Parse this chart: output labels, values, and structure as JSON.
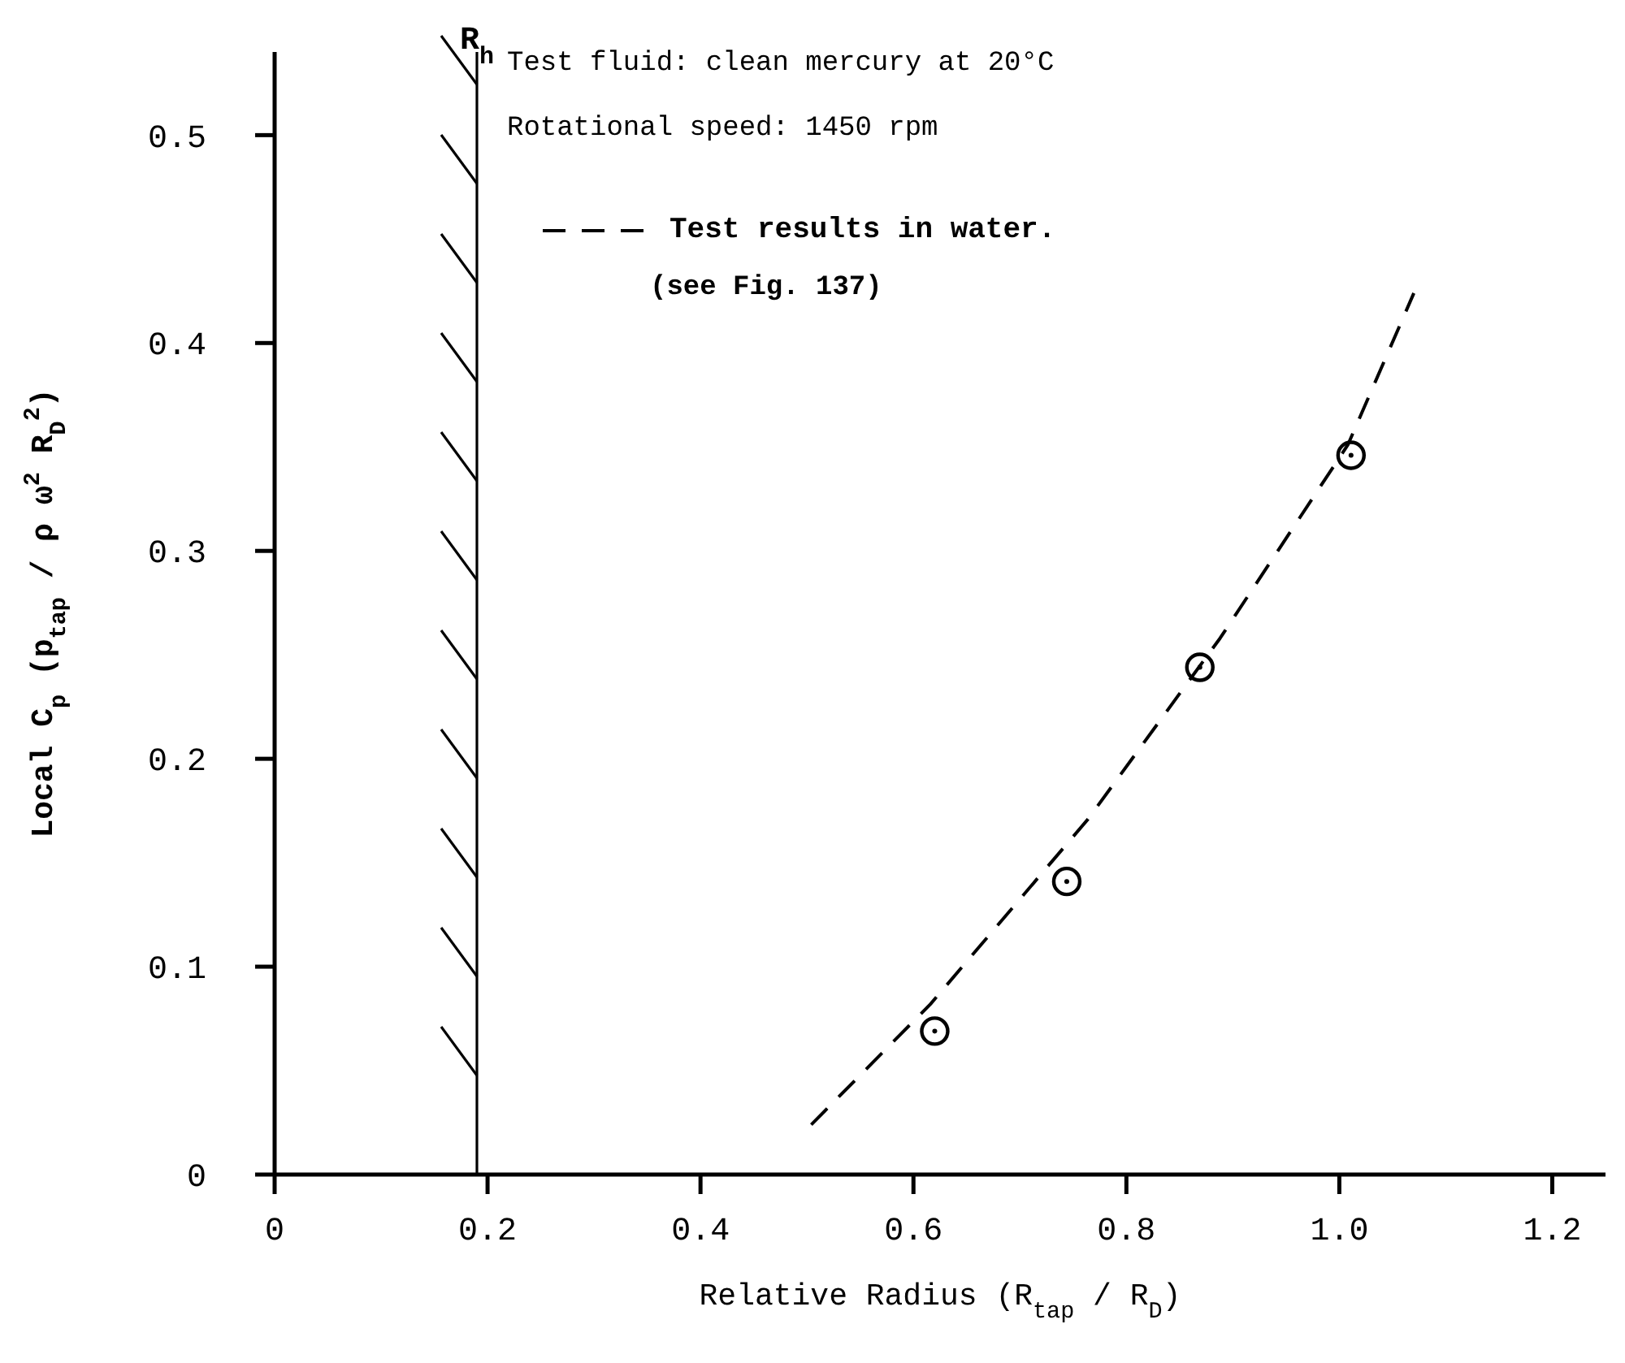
{
  "chart_data": {
    "type": "scatter",
    "xlabel": "Relative Radius (R$_{tap}$ / R$_{D}$)",
    "ylabel": "Local C$_{p}$ (p$_{tap}$ / ρ ω$^{2}$ R$_{D}$$^{2}$)",
    "annotations": [
      "Test fluid: clean mercury at 20°C",
      "Rotational speed: 1450 rpm",
      "(see Fig. 137)"
    ],
    "series": [
      {
        "color": "#000000",
        "marker": "circle",
        "x": [
          0.62,
          0.744,
          0.869,
          1.011
        ],
        "values": [
          0.069,
          0.141,
          0.244,
          0.346
        ]
      },
      {
        "type": "line",
        "name": "Test results in water.",
        "color": "#000000",
        "line_style": "dashed",
        "marker": "none",
        "x": [
          0.504,
          0.616,
          0.764,
          0.888,
          1.008,
          1.07
        ],
        "values": [
          0.024,
          0.082,
          0.171,
          0.258,
          0.351,
          0.424
        ]
      }
    ],
    "xlim": [
      0,
      1.25
    ],
    "xticks": [
      0,
      0.2,
      0.4,
      0.6,
      0.8,
      {
        "value": 1.0,
        "label": "1.0"
      },
      1.2
    ],
    "ylim": [
      0,
      0.54
    ],
    "yticks": [
      0,
      0.1,
      0.2,
      0.3,
      0.4,
      0.5
    ],
    "ref_lines": [
      {
        "axis": "x",
        "value": 0.19,
        "label": "R$_{h}$",
        "color": "#000000"
      }
    ],
    "grid": false,
    "legend": "top"
  }
}
